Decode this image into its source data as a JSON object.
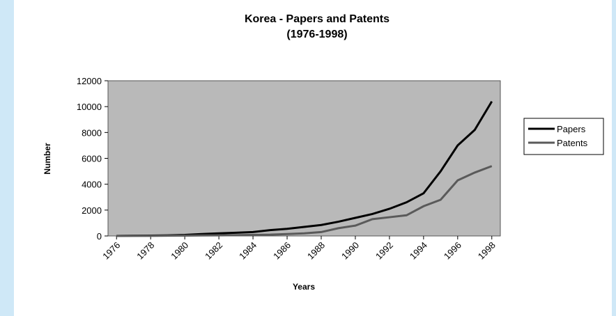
{
  "chart_data": {
    "type": "line",
    "title": "Korea - Papers and Patents",
    "subtitle": "(1976-1998)",
    "xlabel": "Years",
    "ylabel": "Number",
    "x": [
      1976,
      1977,
      1978,
      1979,
      1980,
      1981,
      1982,
      1983,
      1984,
      1985,
      1986,
      1987,
      1988,
      1989,
      1990,
      1991,
      1992,
      1993,
      1994,
      1995,
      1996,
      1997,
      1998
    ],
    "series": [
      {
        "name": "Papers",
        "color": "#000000",
        "values": [
          10,
          20,
          30,
          50,
          80,
          150,
          200,
          250,
          300,
          450,
          550,
          700,
          850,
          1100,
          1400,
          1700,
          2100,
          2600,
          3300,
          5000,
          7000,
          8200,
          10400
        ]
      },
      {
        "name": "Patents",
        "color": "#5a5a5a",
        "values": [
          0,
          10,
          10,
          20,
          30,
          40,
          50,
          60,
          80,
          100,
          150,
          200,
          300,
          600,
          800,
          1300,
          1450,
          1600,
          2300,
          2800,
          4300,
          4900,
          5400
        ]
      }
    ],
    "xlim": [
      1975.5,
      1998.5
    ],
    "xticks": [
      1976,
      1978,
      1980,
      1982,
      1984,
      1986,
      1988,
      1990,
      1992,
      1994,
      1996,
      1998
    ],
    "ylim": [
      0,
      12000
    ],
    "yticks": [
      0,
      2000,
      4000,
      6000,
      8000,
      10000,
      12000
    ],
    "legend": "right"
  }
}
